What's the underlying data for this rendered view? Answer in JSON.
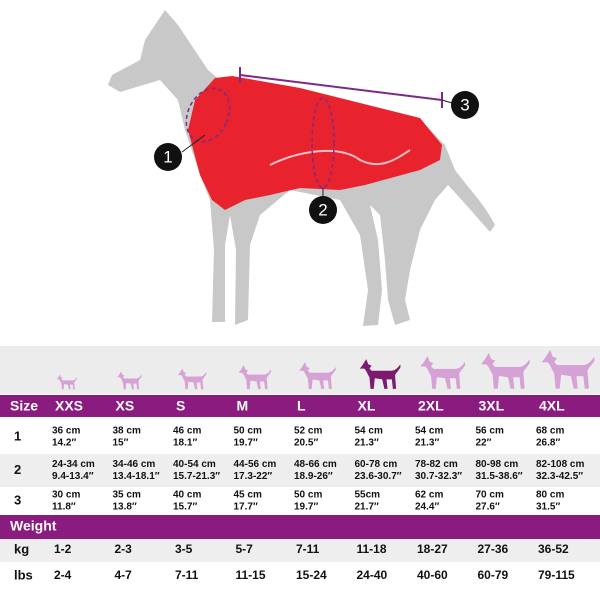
{
  "diagram": {
    "markers": [
      "1",
      "2",
      "3"
    ]
  },
  "table": {
    "size_header": "Size",
    "sizes": [
      "XXS",
      "XS",
      "S",
      "M",
      "L",
      "XL",
      "2XL",
      "3XL",
      "4XL"
    ],
    "rows": [
      {
        "label": "1",
        "cells": [
          [
            "36 cm",
            "14.2″"
          ],
          [
            "38 cm",
            "15″"
          ],
          [
            "46 cm",
            "18.1″"
          ],
          [
            "50 cm",
            "19.7″"
          ],
          [
            "52 cm",
            "20.5″"
          ],
          [
            "54 cm",
            "21.3″"
          ],
          [
            "54 cm",
            "21.3″"
          ],
          [
            "56 cm",
            "22″"
          ],
          [
            "68 cm",
            "26.8″"
          ]
        ]
      },
      {
        "label": "2",
        "cells": [
          [
            "24-34 cm",
            "9.4-13.4″"
          ],
          [
            "34-46 cm",
            "13.4-18.1″"
          ],
          [
            "40-54 cm",
            "15.7-21.3″"
          ],
          [
            "44-56 cm",
            "17.3-22″"
          ],
          [
            "48-66 cm",
            "18.9-26″"
          ],
          [
            "60-78 cm",
            "23.6-30.7″"
          ],
          [
            "78-82 cm",
            "30.7-32.3″"
          ],
          [
            "80-98 cm",
            "31.5-38.6″"
          ],
          [
            "82-108 cm",
            "32.3-42.5″"
          ]
        ]
      },
      {
        "label": "3",
        "cells": [
          [
            "30 cm",
            "11.8″"
          ],
          [
            "35 cm",
            "13.8″"
          ],
          [
            "40 cm",
            "15.7″"
          ],
          [
            "45 cm",
            "17.7″"
          ],
          [
            "50 cm",
            "19.7″"
          ],
          [
            "55cm",
            "21.7″"
          ],
          [
            "62 cm",
            "24.4″"
          ],
          [
            "70 cm",
            "27.6″"
          ],
          [
            "80 cm",
            "31.5″"
          ]
        ]
      }
    ],
    "weight_header": "Weight",
    "weight_rows": [
      {
        "label": "kg",
        "cells": [
          "1-2",
          "2-3",
          "3-5",
          "5-7",
          "7-11",
          "11-18",
          "18-27",
          "27-36",
          "36-52"
        ]
      },
      {
        "label": "lbs",
        "cells": [
          "2-4",
          "4-7",
          "7-11",
          "11-15",
          "15-24",
          "24-40",
          "40-60",
          "60-79",
          "79-115"
        ]
      }
    ]
  }
}
